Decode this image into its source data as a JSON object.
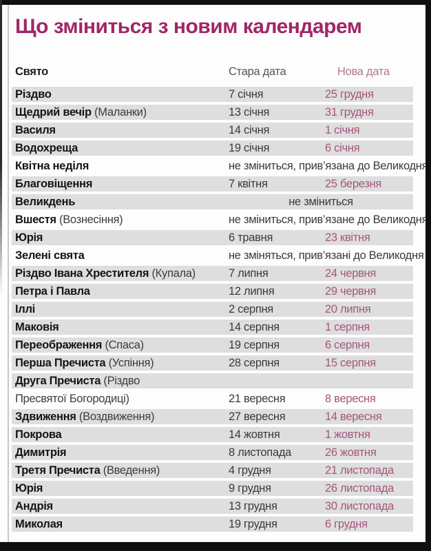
{
  "title": "Що зміниться з новим календарем",
  "colors": {
    "title": "#a02767",
    "new_date_text": "#a4567c",
    "new_date_header": "#b37692",
    "old_date_text": "#3a3a3c",
    "row_stripe": "#dedede",
    "frame_bar": "#101010"
  },
  "table": {
    "headers": {
      "holiday": "Свято",
      "old_date": "Стара дата",
      "new_date": "Нова дата"
    },
    "rows": [
      {
        "type": "date",
        "shaded": true,
        "name": "Різдво",
        "note": "",
        "old": "7 січня",
        "new": "25 грудня"
      },
      {
        "type": "date",
        "shaded": true,
        "name": "Щедрий вечір",
        "note": "(Маланки)",
        "old": "13 січня",
        "new": "31 грудня"
      },
      {
        "type": "date",
        "shaded": true,
        "name": "Василя",
        "note": "",
        "old": "14 січня",
        "new": "1 січня"
      },
      {
        "type": "date",
        "shaded": true,
        "name": "Водохреща",
        "note": "",
        "old": "19 січня",
        "new": "6 січня"
      },
      {
        "type": "span",
        "shaded": false,
        "name": "Квітна неділя",
        "note": "",
        "span": "не зміниться, прив’язана до Великодня",
        "align": "right"
      },
      {
        "type": "date",
        "shaded": true,
        "name": "Благовіщення",
        "note": "",
        "old": "7 квітня",
        "new": "25 березня"
      },
      {
        "type": "span",
        "shaded": true,
        "name": "Великдень",
        "note": "",
        "span": "не зміниться",
        "align": "center"
      },
      {
        "type": "span",
        "shaded": false,
        "name": "Вшестя",
        "note": "(Вознесіння)",
        "span": "не зміниться, прив’язане до Великодня",
        "align": "right"
      },
      {
        "type": "date",
        "shaded": true,
        "name": "Юрія",
        "note": "",
        "old": "6 травня",
        "new": "23 квітня"
      },
      {
        "type": "span",
        "shaded": false,
        "name": "Зелені свята",
        "note": "",
        "span": "не зміняться, прив’язані до Великодня",
        "align": "right"
      },
      {
        "type": "date",
        "shaded": true,
        "name": "Різдво Івана Хрестителя",
        "note": "(Купала)",
        "old": "7 липня",
        "new": "24 червня"
      },
      {
        "type": "date",
        "shaded": true,
        "name": "Петра і Павла",
        "note": "",
        "old": "12 липня",
        "new": "29 червня"
      },
      {
        "type": "date",
        "shaded": true,
        "name": "Іллі",
        "note": "",
        "old": "2 серпня",
        "new": "20 липня"
      },
      {
        "type": "date",
        "shaded": true,
        "name": "Маковія",
        "note": "",
        "old": "14 серпня",
        "new": "1 серпня"
      },
      {
        "type": "date",
        "shaded": true,
        "name": "Переображення",
        "note": "(Спаса)",
        "old": "19 серпня",
        "new": "6 серпня"
      },
      {
        "type": "date",
        "shaded": true,
        "name": "Перша Пречиста",
        "note": "(Успіння)",
        "old": "28 серпня",
        "new": "15 серпня"
      },
      {
        "type": "twoline",
        "shaded": true,
        "name": "Друга Пречиста",
        "note": "(Різдво",
        "line2": "Пресвятої Богородиці)",
        "old": "21 вересня",
        "new": "8 вересня"
      },
      {
        "type": "date",
        "shaded": true,
        "name": "Здвиження",
        "note": "(Воздвиження)",
        "old": "27 вересня",
        "new": "14 вересня"
      },
      {
        "type": "date",
        "shaded": true,
        "name": "Покрова",
        "note": "",
        "old": "14 жовтня",
        "new": "1 жовтня"
      },
      {
        "type": "date",
        "shaded": true,
        "name": "Димитрія",
        "note": "",
        "old": "8 листопада",
        "new": "26 жовтня"
      },
      {
        "type": "date",
        "shaded": true,
        "name": "Третя Пречиста",
        "note": "(Введення)",
        "old": "4 грудня",
        "new": "21 листопада"
      },
      {
        "type": "date",
        "shaded": true,
        "name": "Юрія",
        "note": "",
        "old": "9 грудня",
        "new": "26 листопада"
      },
      {
        "type": "date",
        "shaded": true,
        "name": "Андрія",
        "note": "",
        "old": "13 грудня",
        "new": "30 листопада"
      },
      {
        "type": "date",
        "shaded": true,
        "name": "Миколая",
        "note": "",
        "old": "19 грудня",
        "new": "6 грудня"
      }
    ]
  }
}
